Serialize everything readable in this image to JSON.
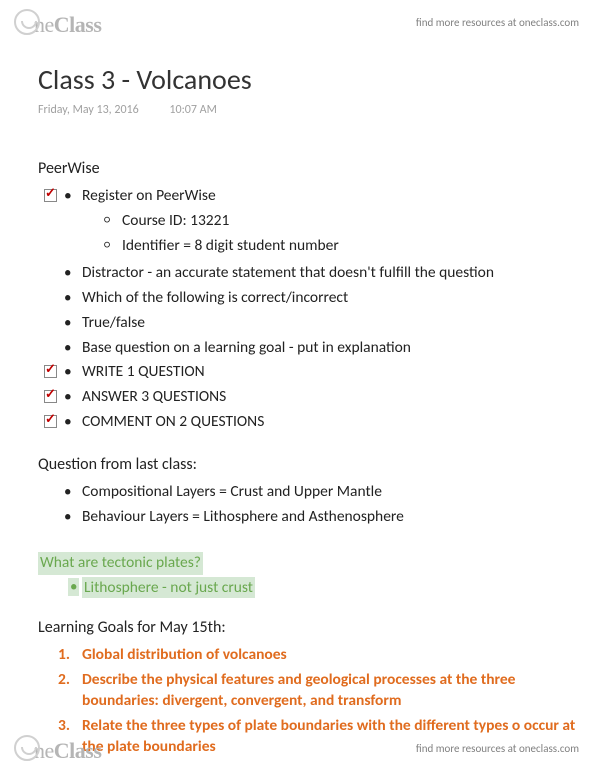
{
  "brand": {
    "part1": "ne",
    "part2": "Class"
  },
  "header_link": "find more resources at oneclass.com",
  "footer_link": "find more resources at oneclass.com",
  "title": "Class 3 - Volcanoes",
  "meta": {
    "date": "Friday, May 13, 2016",
    "time": "10:07 AM"
  },
  "peerwise": {
    "heading": "PeerWise",
    "items": [
      {
        "checked": true,
        "text": "Register on PeerWise",
        "sub": [
          "Course ID: 13221",
          "Identifier = 8 digit student number"
        ]
      },
      {
        "checked": false,
        "text": "Distractor - an accurate statement that doesn't fulfill the question"
      },
      {
        "checked": false,
        "text": "Which of the following is correct/incorrect"
      },
      {
        "checked": false,
        "text": "True/false"
      },
      {
        "checked": false,
        "text": "Base question on a learning goal - put in explanation"
      },
      {
        "checked": true,
        "text": "WRITE 1 QUESTION"
      },
      {
        "checked": true,
        "text": "ANSWER 3 QUESTIONS"
      },
      {
        "checked": true,
        "text": "COMMENT ON 2 QUESTIONS"
      }
    ]
  },
  "lastclass": {
    "heading": "Question from last class:",
    "items": [
      "Compositional Layers = Crust and Upper Mantle",
      "Behaviour Layers = Lithosphere and Asthenosphere"
    ]
  },
  "highlight": {
    "question": "What are tectonic plates?",
    "answer": "Lithosphere - not just crust"
  },
  "goals": {
    "heading": "Learning Goals for May 15th:",
    "items": [
      "Global distribution of volcanoes",
      "Describe the physical features and geological processes at the three boundaries: divergent, convergent, and transform",
      "Relate the three types of plate boundaries with the different types o occur at the plate boundaries"
    ]
  },
  "colors": {
    "goal_color": "#e06c1f",
    "highlight_bg": "#d5e8d4",
    "highlight_fg": "#6aa84f"
  }
}
